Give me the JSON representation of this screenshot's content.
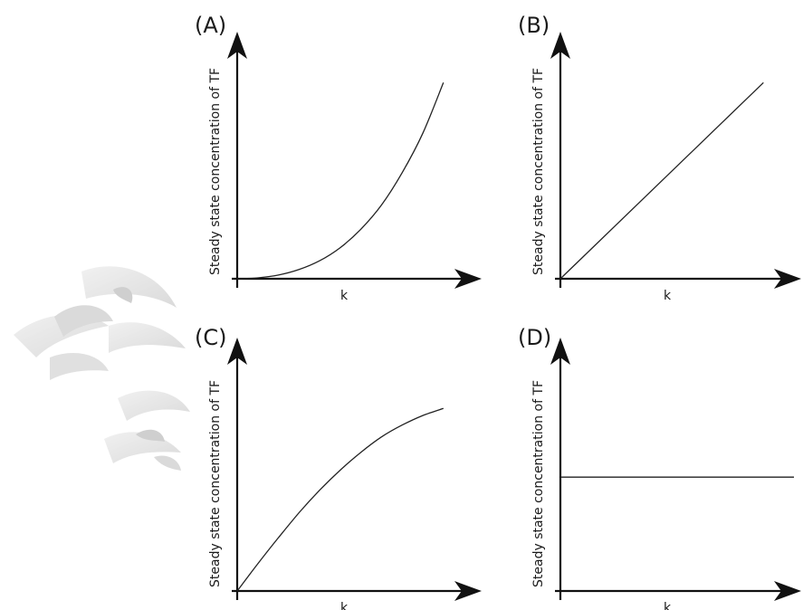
{
  "chart_data": [
    {
      "panel": "(A)",
      "type": "line",
      "title": "",
      "xlabel": "k",
      "ylabel": "Steady state concentration of TF",
      "shape": "convex (accelerating increase)",
      "x": [
        0,
        0.1,
        0.2,
        0.3,
        0.4,
        0.5,
        0.6,
        0.7,
        0.8,
        0.9,
        1.0
      ],
      "values": [
        0,
        0.004,
        0.016,
        0.04,
        0.078,
        0.135,
        0.215,
        0.32,
        0.46,
        0.63,
        0.85
      ],
      "xlim": [
        0,
        1.15
      ],
      "ylim": [
        0,
        1.0
      ],
      "grid": false
    },
    {
      "panel": "(B)",
      "type": "line",
      "title": "",
      "xlabel": "k",
      "ylabel": "Steady state concentration of TF",
      "shape": "linear (proportional increase)",
      "x": [
        0,
        1.0
      ],
      "values": [
        0,
        0.85
      ],
      "xlim": [
        0,
        1.15
      ],
      "ylim": [
        0,
        1.0
      ],
      "grid": false
    },
    {
      "panel": "(C)",
      "type": "line",
      "title": "",
      "xlabel": "k",
      "ylabel": "Steady state concentration of TF",
      "shape": "concave (saturating increase)",
      "x": [
        0,
        0.1,
        0.2,
        0.3,
        0.4,
        0.5,
        0.6,
        0.7,
        0.8,
        0.9,
        1.0
      ],
      "values": [
        0,
        0.115,
        0.225,
        0.33,
        0.425,
        0.51,
        0.585,
        0.65,
        0.7,
        0.74,
        0.77
      ],
      "xlim": [
        0,
        1.15
      ],
      "ylim": [
        0,
        1.0
      ],
      "grid": false
    },
    {
      "panel": "(D)",
      "type": "line",
      "title": "",
      "xlabel": "k",
      "ylabel": "Steady state concentration of TF",
      "shape": "constant (independent of k)",
      "x": [
        0,
        1.15
      ],
      "values": [
        0.48,
        0.48
      ],
      "xlim": [
        0,
        1.15
      ],
      "ylim": [
        0,
        1.0
      ],
      "grid": false
    }
  ]
}
